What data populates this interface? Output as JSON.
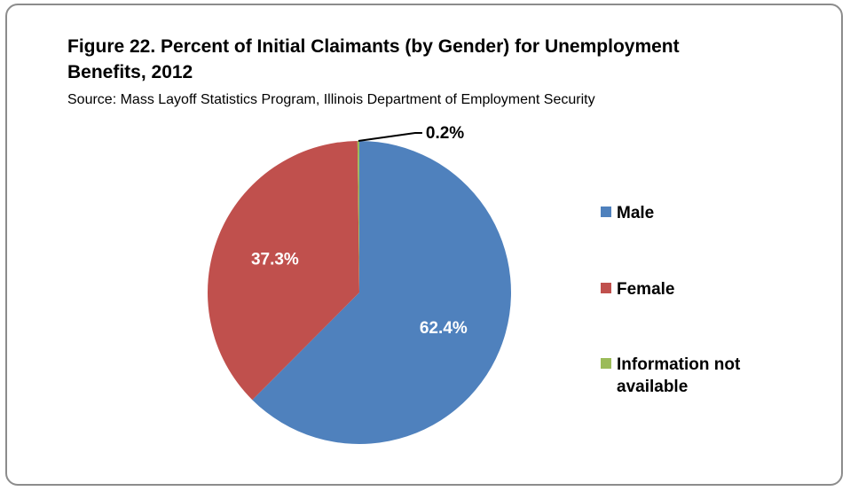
{
  "chart_data": {
    "type": "pie",
    "title": "Figure 22. Percent of Initial Claimants (by Gender) for Unemployment Benefits, 2012",
    "subtitle": "Source:  Mass Layoff Statistics Program, Illinois Department of Employment Security",
    "slices": [
      {
        "label": "Male",
        "value": 62.4,
        "display": "62.4%",
        "color": "#4F81BD"
      },
      {
        "label": "Female",
        "value": 37.3,
        "display": "37.3%",
        "color": "#C0504D"
      },
      {
        "label": "Information not available",
        "value": 0.2,
        "display": "0.2%",
        "color": "#9BBB59"
      }
    ],
    "legend_position": "right",
    "start_angle": "12 o'clock, clockwise"
  }
}
